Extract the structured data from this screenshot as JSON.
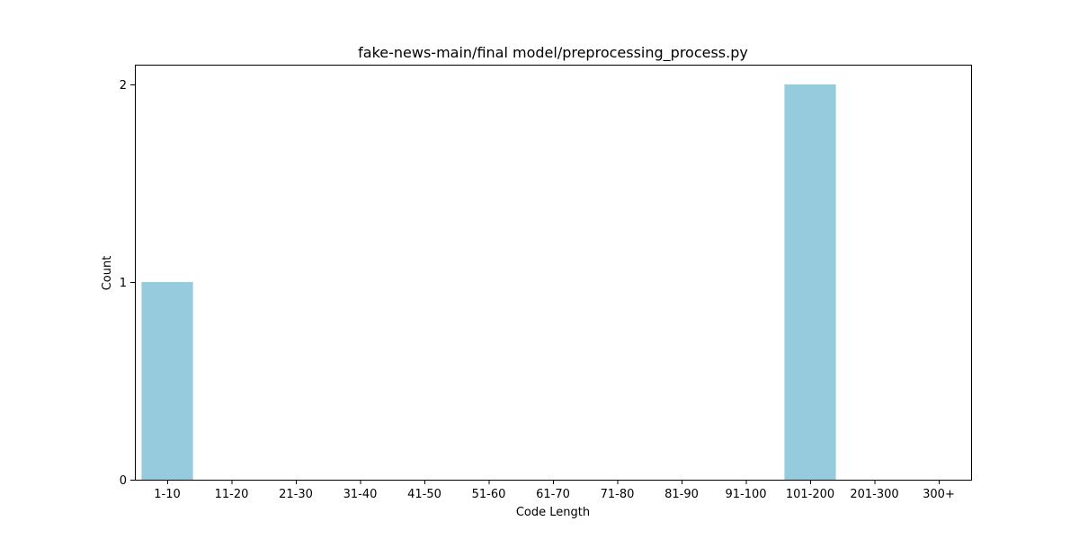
{
  "chart_data": {
    "type": "bar",
    "title": "fake-news-main/final model/preprocessing_process.py",
    "xlabel": "Code Length",
    "ylabel": "Count",
    "categories": [
      "1-10",
      "11-20",
      "21-30",
      "31-40",
      "41-50",
      "51-60",
      "61-70",
      "71-80",
      "81-90",
      "91-100",
      "101-200",
      "201-300",
      "300+"
    ],
    "values": [
      1,
      0,
      0,
      0,
      0,
      0,
      0,
      0,
      0,
      0,
      2,
      0,
      0
    ],
    "yticks": [
      0,
      1,
      2
    ],
    "ylim": [
      0,
      2.1
    ],
    "bar_color": "#96cbde",
    "grid": false,
    "legend": "none"
  }
}
